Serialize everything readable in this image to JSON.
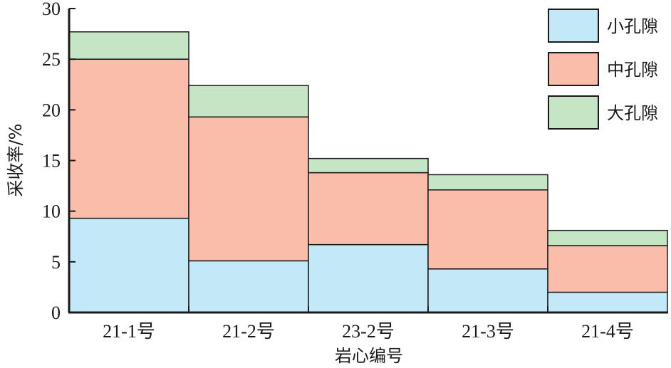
{
  "chart_data": {
    "type": "bar",
    "stacked": true,
    "categories": [
      "21-1号",
      "21-2号",
      "23-2号",
      "21-3号",
      "21-4号"
    ],
    "series": [
      {
        "name": "小孔隙",
        "values": [
          9.3,
          5.1,
          6.7,
          4.3,
          2.0
        ],
        "color": "#c3e9f8"
      },
      {
        "name": "中孔隙",
        "values": [
          15.7,
          14.2,
          7.1,
          7.8,
          4.6
        ],
        "color": "#f9bdaa"
      },
      {
        "name": "大孔隙",
        "values": [
          2.7,
          3.1,
          1.4,
          1.5,
          1.5
        ],
        "color": "#c4e6c5"
      }
    ],
    "xlabel": "岩心编号",
    "ylabel": "采收率/%",
    "ylim": [
      0,
      30
    ],
    "yticks": [
      "0",
      "5",
      "10",
      "15",
      "20",
      "25",
      "30"
    ],
    "grid": false,
    "legend_position": "top-right"
  }
}
